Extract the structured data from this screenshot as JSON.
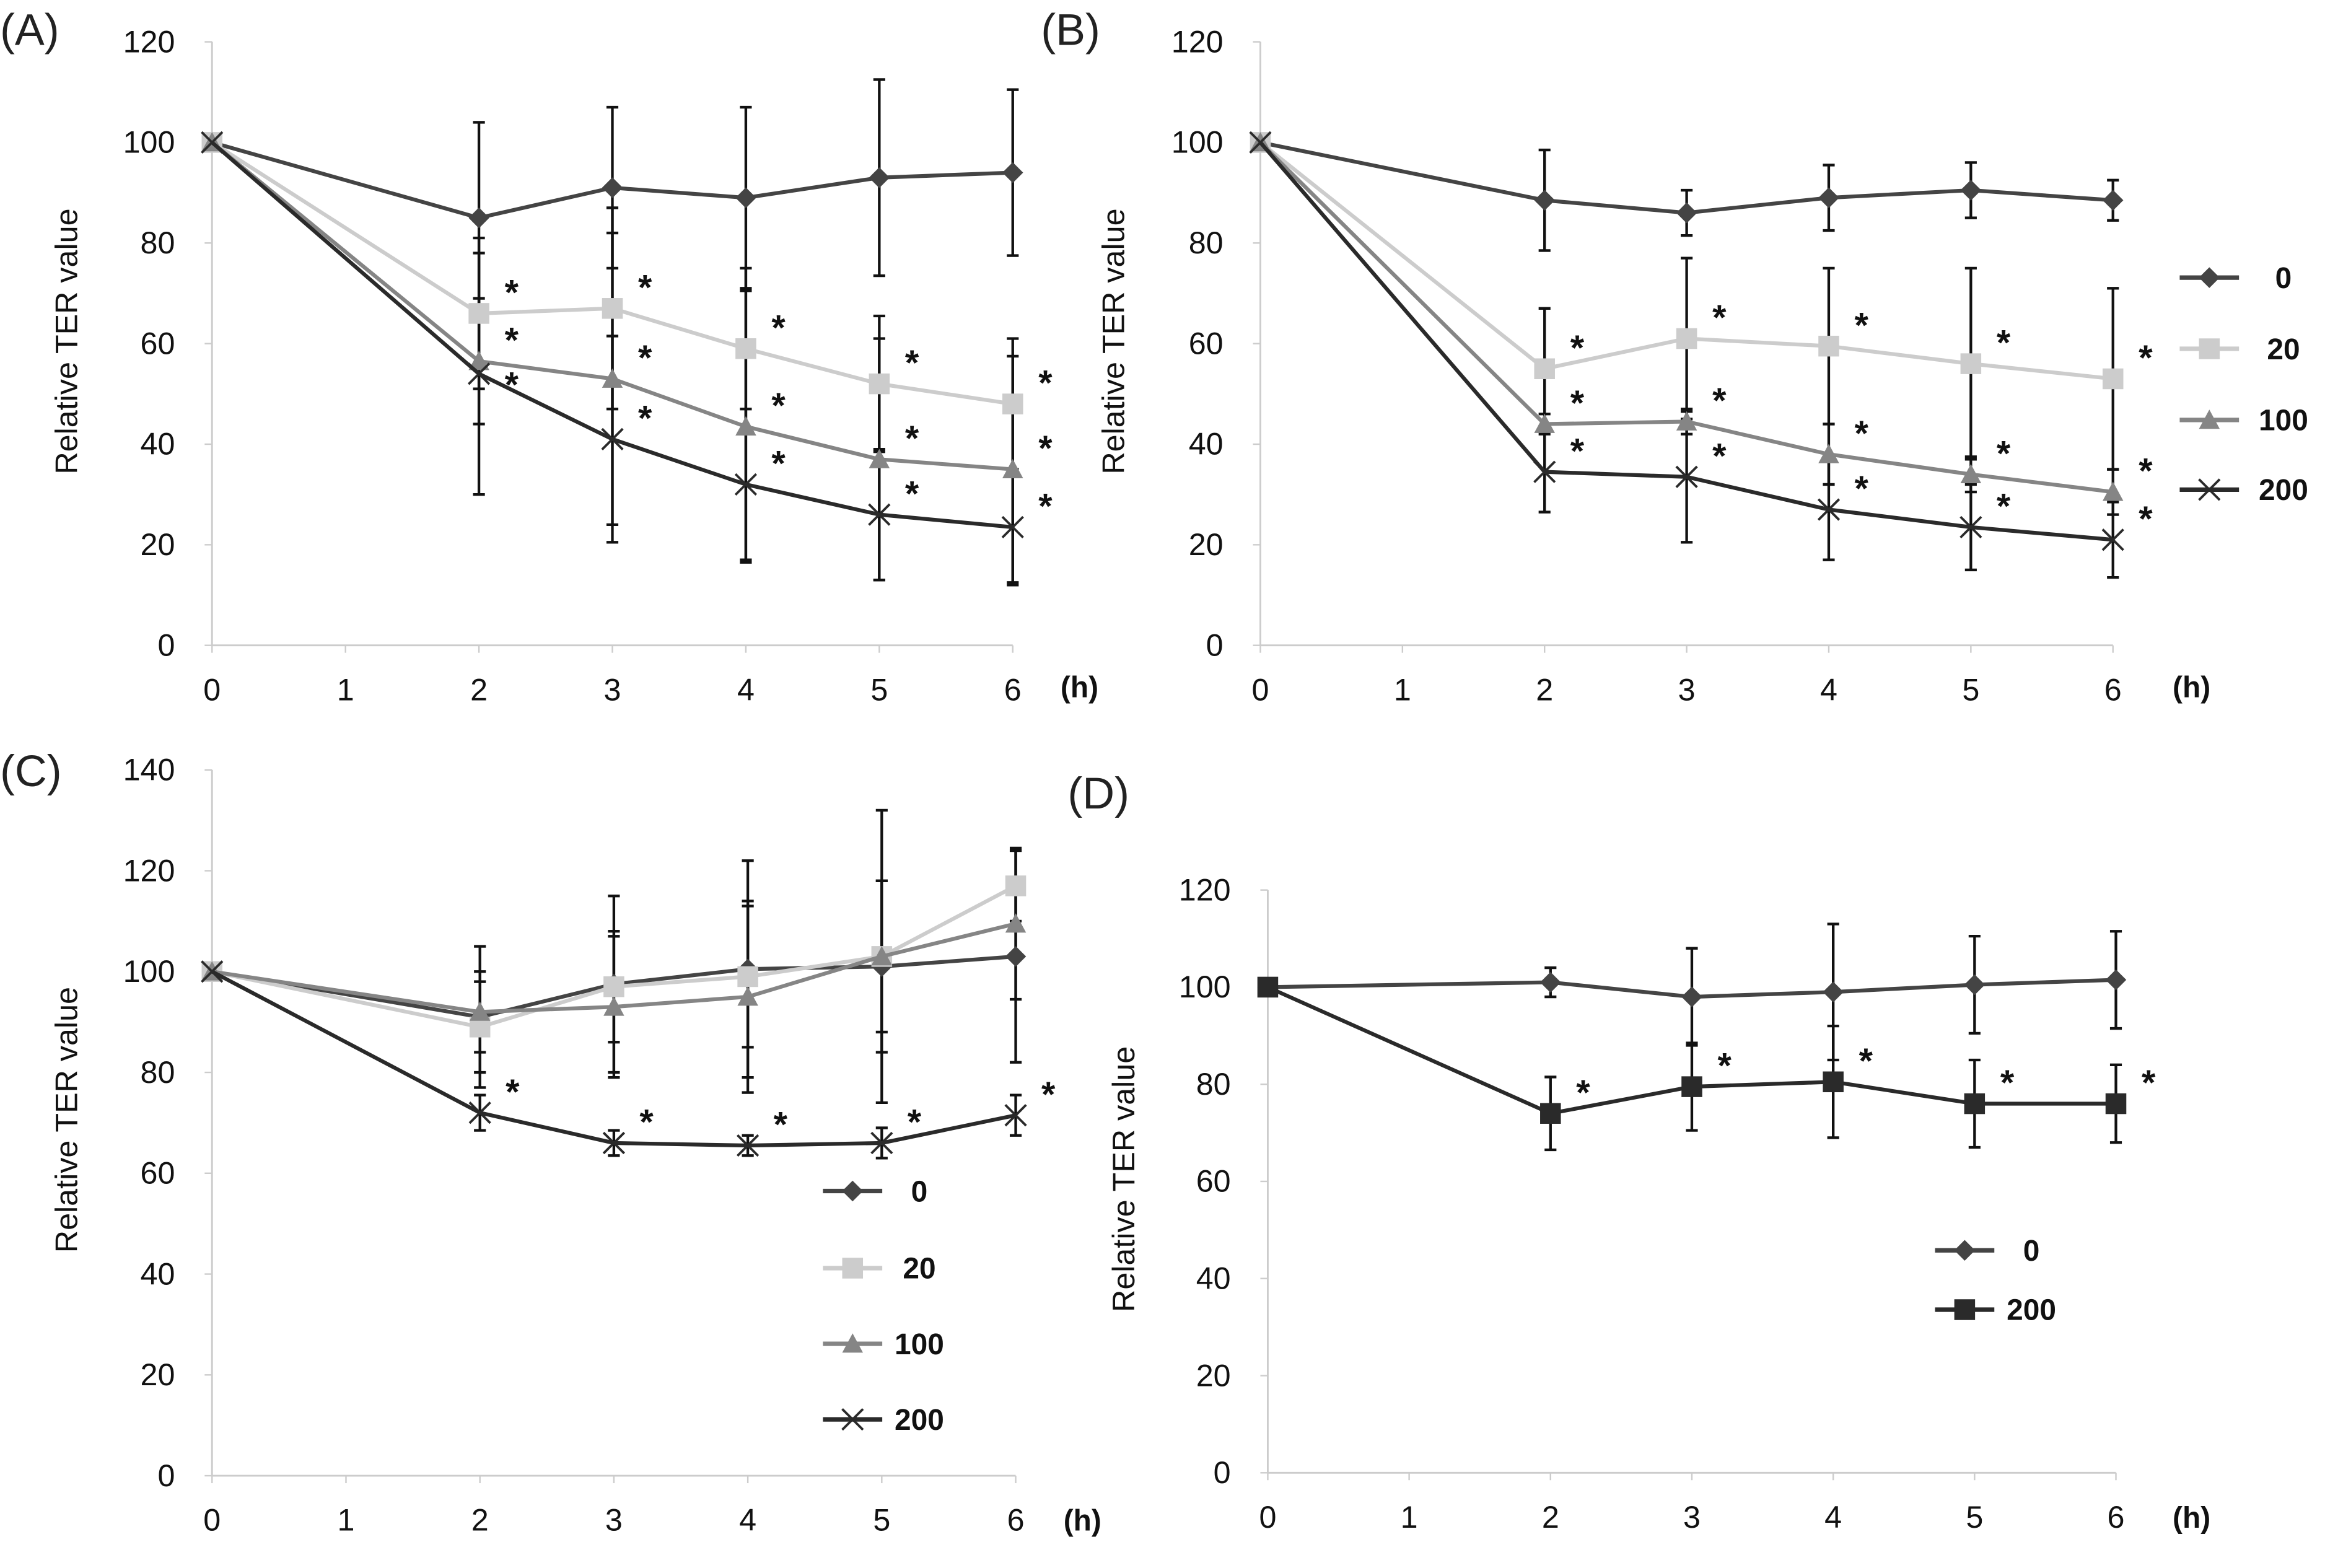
{
  "significance_marker": "*",
  "colors": {
    "0": "#444444",
    "20": "#cccccc",
    "100": "#858585",
    "200": "#2a2a2a"
  },
  "chart_data": [
    {
      "panel": "(A)",
      "type": "line",
      "ylabel": "Relative TER value",
      "xunit": "(h)",
      "x": [
        0,
        2,
        3,
        4,
        5,
        6
      ],
      "xticks": [
        "0",
        "1",
        "2",
        "3",
        "4",
        "5",
        "6"
      ],
      "ylim": [
        0,
        120
      ],
      "yticks": [
        "0",
        "20",
        "40",
        "60",
        "80",
        "100",
        "120"
      ],
      "legend": null,
      "series": [
        {
          "name": "0",
          "marker": "diamond",
          "values": [
            100,
            85,
            91,
            89,
            93,
            94
          ],
          "errors": [
            0,
            19,
            16,
            18,
            19.5,
            16.5
          ],
          "stars": []
        },
        {
          "name": "20",
          "marker": "square",
          "values": [
            100,
            66,
            67,
            59,
            52,
            48
          ],
          "errors": [
            0,
            15,
            20,
            16,
            13.5,
            13
          ],
          "stars": [
            2,
            3,
            4,
            5,
            6
          ]
        },
        {
          "name": "100",
          "marker": "triangle",
          "values": [
            100,
            56.5,
            53,
            43.5,
            37,
            35
          ],
          "errors": [
            0,
            12.5,
            29,
            27,
            24,
            22.5
          ],
          "stars": [
            2,
            3,
            4,
            5,
            6
          ]
        },
        {
          "name": "200",
          "marker": "x",
          "values": [
            100,
            54,
            41,
            32,
            26,
            23.5
          ],
          "errors": [
            0,
            24,
            20.5,
            15,
            13,
            11.5
          ],
          "stars": [
            2,
            3,
            4,
            5,
            6
          ]
        }
      ]
    },
    {
      "panel": "(B)",
      "type": "line",
      "ylabel": "Relative TER value",
      "xunit": "(h)",
      "x": [
        0,
        2,
        3,
        4,
        5,
        6
      ],
      "xticks": [
        "0",
        "1",
        "2",
        "3",
        "4",
        "5",
        "6"
      ],
      "ylim": [
        0,
        120
      ],
      "yticks": [
        "0",
        "20",
        "40",
        "60",
        "80",
        "100",
        "120"
      ],
      "legend": "right",
      "series": [
        {
          "name": "0",
          "marker": "diamond",
          "values": [
            100,
            88.5,
            86,
            89,
            90.5,
            88.5
          ],
          "errors": [
            0,
            10,
            4.5,
            6.5,
            5.5,
            4
          ],
          "stars": []
        },
        {
          "name": "20",
          "marker": "square",
          "values": [
            100,
            55,
            61,
            59.5,
            56,
            53
          ],
          "errors": [
            0,
            12,
            16,
            15.5,
            19,
            18
          ],
          "stars": [
            2,
            3,
            4,
            5,
            6
          ]
        },
        {
          "name": "100",
          "marker": "triangle",
          "values": [
            100,
            44,
            44.5,
            38,
            34,
            30.5
          ],
          "errors": [
            0,
            2,
            2.5,
            6,
            3.5,
            4.5
          ],
          "stars": [
            2,
            3,
            4,
            5,
            6
          ]
        },
        {
          "name": "200",
          "marker": "x",
          "values": [
            100,
            34.5,
            33.5,
            27,
            23.5,
            21
          ],
          "errors": [
            0,
            8,
            13,
            10,
            8.5,
            7.5
          ],
          "stars": [
            2,
            3,
            4,
            5,
            6
          ]
        }
      ]
    },
    {
      "panel": "(C)",
      "type": "line",
      "ylabel": "Relative TER value",
      "xunit": "(h)",
      "x": [
        0,
        2,
        3,
        4,
        5,
        6
      ],
      "xticks": [
        "0",
        "1",
        "2",
        "3",
        "4",
        "5",
        "6"
      ],
      "ylim": [
        0,
        140
      ],
      "yticks": [
        "0",
        "20",
        "40",
        "60",
        "80",
        "100",
        "120",
        "140"
      ],
      "legend": "bottom-right-inside",
      "series": [
        {
          "name": "0",
          "marker": "diamond",
          "values": [
            100,
            91,
            97.5,
            100.5,
            101,
            103
          ],
          "errors": [
            0,
            14,
            17.5,
            21.5,
            17,
            21
          ],
          "stars": []
        },
        {
          "name": "20",
          "marker": "square",
          "values": [
            100,
            89,
            97,
            99,
            103,
            117
          ],
          "errors": [
            0,
            9,
            11,
            14,
            29,
            7
          ],
          "stars": []
        },
        {
          "name": "100",
          "marker": "triangle",
          "values": [
            100,
            92,
            93,
            95,
            103,
            109.5
          ],
          "errors": [
            0,
            8,
            14,
            19,
            15,
            15
          ],
          "stars": []
        },
        {
          "name": "200",
          "marker": "x",
          "values": [
            100,
            72,
            66,
            65.5,
            66,
            71.5
          ],
          "errors": [
            0,
            3.5,
            2.5,
            2,
            3,
            4
          ],
          "stars": [
            2,
            3,
            4,
            5,
            6
          ]
        }
      ]
    },
    {
      "panel": "(D)",
      "type": "line",
      "ylabel": "Relative TER value",
      "xunit": "(h)",
      "x": [
        0,
        2,
        3,
        4,
        5,
        6
      ],
      "xticks": [
        "0",
        "1",
        "2",
        "3",
        "4",
        "5",
        "6"
      ],
      "ylim": [
        0,
        120
      ],
      "yticks": [
        "0",
        "20",
        "40",
        "60",
        "80",
        "100",
        "120"
      ],
      "legend": "bottom-right-inside",
      "series": [
        {
          "name": "0",
          "marker": "diamond",
          "values": [
            100,
            101,
            98,
            99,
            100.5,
            101.5
          ],
          "errors": [
            0,
            3,
            10,
            14,
            10,
            10
          ],
          "stars": []
        },
        {
          "name": "200",
          "marker": "square",
          "values": [
            100,
            74,
            79.5,
            80.5,
            76,
            76
          ],
          "errors": [
            0,
            7.5,
            9,
            11.5,
            9,
            8
          ],
          "stars": [
            2,
            3,
            4,
            5,
            6
          ]
        }
      ]
    }
  ]
}
